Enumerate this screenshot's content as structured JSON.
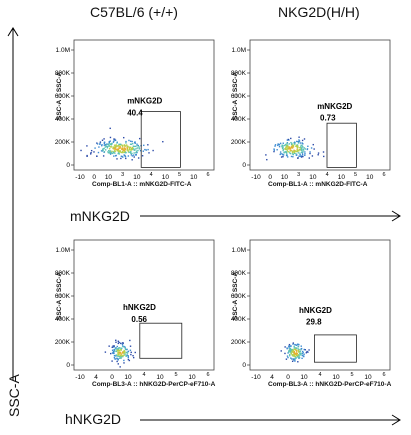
{
  "columns": [
    "C57BL/6 (+/+)",
    "NKG2D(H/H)"
  ],
  "rows": [
    {
      "label": "mNKG2D"
    },
    {
      "label": "hNKG2D"
    }
  ],
  "side_label": "SSC-A",
  "chart_data": [
    {
      "type": "scatter",
      "column": "C57BL/6 (+/+)",
      "row": "mNKG2D",
      "xlabel": "Comp-BL1-A :: mNKG2D-FITC-A",
      "ylabel": "SSC-A :: SSC-A",
      "yticks": [
        "0",
        "200K",
        "400K",
        "600K",
        "800K",
        "1.0M"
      ],
      "xticks": [
        "-10",
        "0",
        "10",
        "3",
        "10",
        "4",
        "10",
        "5",
        "10",
        "6"
      ],
      "gate": {
        "name": "mNKG2D",
        "value": "40.4"
      }
    },
    {
      "type": "scatter",
      "column": "NKG2D(H/H)",
      "row": "mNKG2D",
      "xlabel": "Comp-BL1-A :: mNKG2D-FITC-A",
      "ylabel": "SSC-A :: SSC-A",
      "yticks": [
        "0",
        "200K",
        "400K",
        "600K",
        "800K",
        "1.0M"
      ],
      "xticks": [
        "-10",
        "0",
        "10",
        "3",
        "10",
        "4",
        "10",
        "5",
        "10",
        "6"
      ],
      "gate": {
        "name": "mNKG2D",
        "value": "0.73"
      }
    },
    {
      "type": "scatter",
      "column": "C57BL/6 (+/+)",
      "row": "hNKG2D",
      "xlabel": "Comp-BL3-A :: hNKG2D-PerCP-eF710-A",
      "ylabel": "SSC-A :: SSC-A",
      "yticks": [
        "0",
        "200K",
        "400K",
        "600K",
        "800K",
        "1.0M"
      ],
      "xticks": [
        "-10",
        "4",
        "0",
        "10",
        "4",
        "10",
        "5",
        "10",
        "6"
      ],
      "gate": {
        "name": "hNKG2D",
        "value": "0.56"
      }
    },
    {
      "type": "scatter",
      "column": "NKG2D(H/H)",
      "row": "hNKG2D",
      "xlabel": "Comp-BL3-A :: hNKG2D-PerCP-eF710-A",
      "ylabel": "SSC-A :: SSC-A",
      "yticks": [
        "0",
        "200K",
        "400K",
        "600K",
        "800K",
        "1.0M"
      ],
      "xticks": [
        "-10",
        "4",
        "0",
        "10",
        "4",
        "10",
        "5",
        "10",
        "6"
      ],
      "gate": {
        "name": "hNKG2D",
        "value": "29.8"
      }
    }
  ]
}
